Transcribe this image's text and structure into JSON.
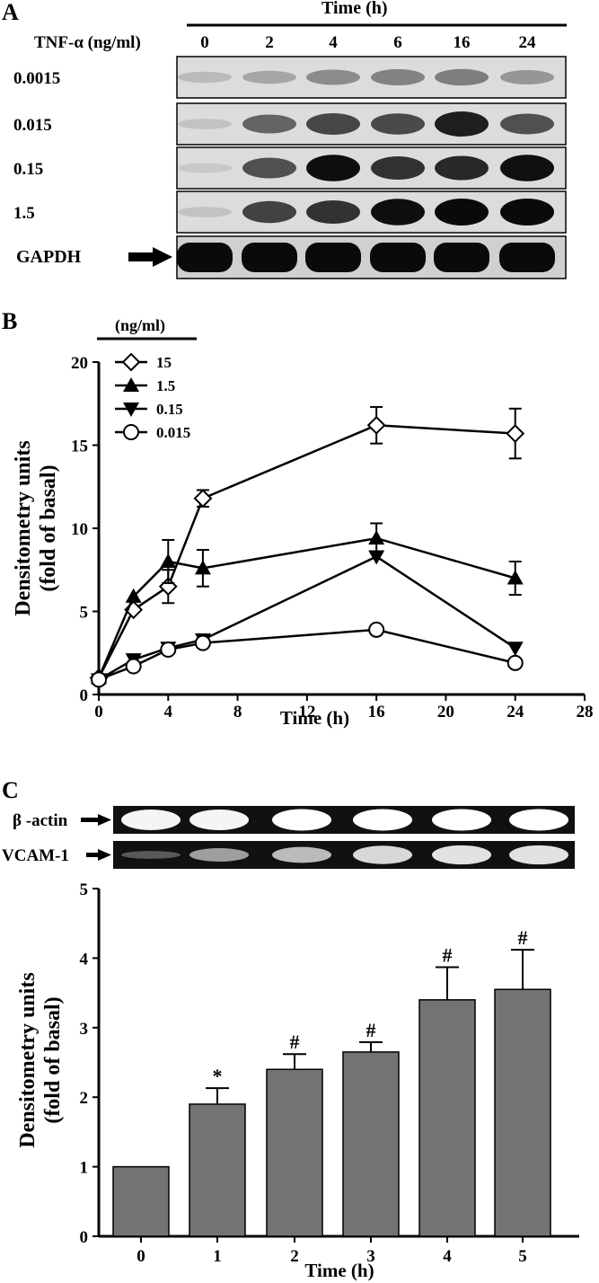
{
  "panelA": {
    "label": "A",
    "time_header": "Time (h)",
    "tnf_label": "TNF-α (ng/ml)",
    "times": [
      "0",
      "2",
      "4",
      "6",
      "16",
      "24"
    ],
    "rows": [
      {
        "label": "0.0015",
        "intensity": [
          0.12,
          0.22,
          0.35,
          0.4,
          0.42,
          0.3
        ]
      },
      {
        "label": "0.015",
        "intensity": [
          0.08,
          0.55,
          0.7,
          0.68,
          0.9,
          0.65
        ]
      },
      {
        "label": "0.15",
        "intensity": [
          0.05,
          0.65,
          0.98,
          0.8,
          0.85,
          0.97
        ]
      },
      {
        "label": "1.5",
        "intensity": [
          0.08,
          0.72,
          0.8,
          0.98,
          1.0,
          1.0
        ]
      }
    ],
    "gapdh_label": "GAPDH",
    "gapdh_intensity": [
      1,
      1,
      1,
      1,
      1,
      1
    ]
  },
  "panelB": {
    "label": "B",
    "legend_title": "(ng/ml)"
  },
  "panelC": {
    "label": "C",
    "gel_rows": [
      {
        "label": "β -actin",
        "intensity": [
          0.95,
          0.95,
          1,
          1,
          1,
          1
        ]
      },
      {
        "label": "VCAM-1",
        "intensity": [
          0.15,
          0.5,
          0.65,
          0.8,
          0.85,
          0.85
        ]
      }
    ]
  },
  "chart_data": [
    {
      "type": "line",
      "xlabel": "Time (h)",
      "ylabel": "Densitometry units (fold of basal)",
      "xlim": [
        0,
        28
      ],
      "ylim": [
        0,
        20
      ],
      "xticks": [
        0,
        4,
        8,
        12,
        16,
        20,
        24,
        28
      ],
      "yticks": [
        0,
        5,
        10,
        15,
        20
      ],
      "legend_position": "top-left",
      "series": [
        {
          "name": "15",
          "marker": "diamond-open",
          "x": [
            0,
            2,
            4,
            6,
            16,
            24
          ],
          "y": [
            1,
            5.1,
            6.5,
            11.8,
            16.2,
            15.7
          ],
          "err": [
            0,
            0,
            1,
            0.5,
            1.1,
            1.5
          ]
        },
        {
          "name": "1.5",
          "marker": "triangle-up",
          "x": [
            0,
            2,
            4,
            6,
            16,
            24
          ],
          "y": [
            1,
            5.9,
            8.0,
            7.6,
            9.4,
            7.0
          ],
          "err": [
            0,
            0,
            1.3,
            1.1,
            0.9,
            1.0
          ]
        },
        {
          "name": "0.15",
          "marker": "triangle-down",
          "x": [
            0,
            2,
            4,
            6,
            16,
            24
          ],
          "y": [
            0.9,
            2.1,
            2.8,
            3.3,
            8.3,
            2.8
          ],
          "err": [
            0,
            0,
            0,
            0,
            0,
            0
          ]
        },
        {
          "name": "0.015",
          "marker": "circle-open",
          "x": [
            0,
            2,
            4,
            6,
            16,
            24
          ],
          "y": [
            0.9,
            1.7,
            2.7,
            3.1,
            3.9,
            1.9
          ],
          "err": [
            0,
            0,
            0,
            0,
            0,
            0
          ]
        }
      ]
    },
    {
      "type": "bar",
      "xlabel": "Time (h)",
      "ylabel": "Densitometry units (fold of basal)",
      "ylim": [
        0,
        5
      ],
      "yticks": [
        0,
        1,
        2,
        3,
        4,
        5
      ],
      "categories": [
        "0",
        "1",
        "2",
        "3",
        "4",
        "5"
      ],
      "values": [
        1.0,
        1.9,
        2.4,
        2.65,
        3.4,
        3.55
      ],
      "errors": [
        0,
        0.23,
        0.22,
        0.14,
        0.47,
        0.57
      ],
      "annotations": [
        "",
        "*",
        "#",
        "#",
        "#",
        "#"
      ],
      "bar_color": "#737373"
    }
  ]
}
